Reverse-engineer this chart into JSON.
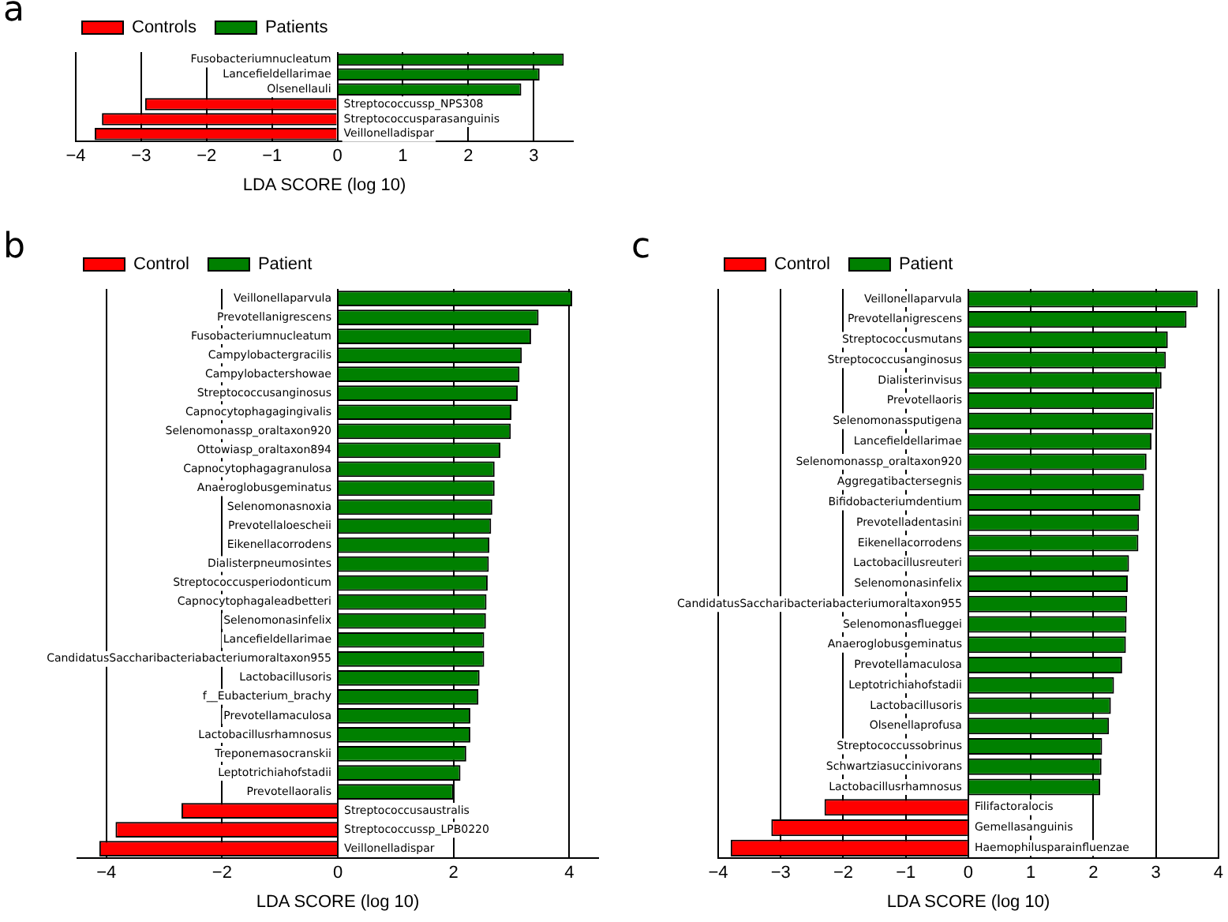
{
  "chart_data": [
    {
      "type": "bar",
      "orientation": "horizontal",
      "title": "a",
      "xlabel": "LDA SCORE (log 10)",
      "legend": "top left",
      "grid": "x",
      "xlim": [
        -4,
        3.6
      ],
      "xticks": [
        -4,
        -3,
        -2,
        -1,
        0,
        1,
        2,
        3
      ],
      "categories": [
        "Fusobacteriumnucleatum",
        "Lancefieldellarimae",
        "Olsenellauli",
        "Streptococcussp_NPS308",
        "Streptococcusparasanguinis",
        "Veillonelladispar"
      ],
      "series": [
        {
          "name": "Controls",
          "color": "#ff0000",
          "values": [
            null,
            null,
            null,
            -2.94,
            -3.6,
            -3.71
          ]
        },
        {
          "name": "Patients",
          "color": "#008000",
          "values": [
            3.46,
            3.09,
            2.81,
            null,
            null,
            null
          ]
        }
      ]
    },
    {
      "type": "bar",
      "orientation": "horizontal",
      "title": "b",
      "xlabel": "LDA SCORE (log 10)",
      "legend": "top left",
      "grid": "x",
      "xlim": [
        -4.5,
        4.5
      ],
      "xticks": [
        -4,
        -2,
        0,
        2,
        4
      ],
      "categories": [
        "Veillonellaparvula",
        "Prevotellanigrescens",
        "Fusobacteriumnucleatum",
        "Campylobactergracilis",
        "Campylobactershowae",
        "Streptococcusanginosus",
        "Capnocytophagagingivalis",
        "Selenomonassp_oraltaxon920",
        "Ottowiasp_oraltaxon894",
        "Capnocytophagagranulosa",
        "Anaeroglobusgeminatus",
        "Selenomonasnoxia",
        "Prevotellaloescheii",
        "Eikenellacorrodens",
        "Dialisterpneumosintes",
        "Streptococcusperiodonticum",
        "Capnocytophagaleadbetteri",
        "Selenomonasinfelix",
        "Lancefieldellarimae",
        "CandidatusSaccharibacteriabacteriumoraltaxon955",
        "Lactobacillusoris",
        "f__Eubacterium_brachy",
        "Prevotellamaculosa",
        "Lactobacillusrhamnosus",
        "Treponemasocranskii",
        "Leptotrichiahofstadii",
        "Prevotellaoralis",
        "Streptococcusaustralis",
        "Streptococcussp_LPB0220",
        "Veillonelladispar"
      ],
      "series": [
        {
          "name": "Control",
          "color": "#ff0000",
          "values": [
            null,
            null,
            null,
            null,
            null,
            null,
            null,
            null,
            null,
            null,
            null,
            null,
            null,
            null,
            null,
            null,
            null,
            null,
            null,
            null,
            null,
            null,
            null,
            null,
            null,
            null,
            null,
            -2.7,
            -3.84,
            -4.12
          ]
        },
        {
          "name": "Patient",
          "color": "#008000",
          "values": [
            4.05,
            3.47,
            3.34,
            3.18,
            3.14,
            3.11,
            3.0,
            2.99,
            2.81,
            2.71,
            2.71,
            2.67,
            2.65,
            2.62,
            2.61,
            2.59,
            2.57,
            2.56,
            2.53,
            2.53,
            2.45,
            2.43,
            2.29,
            2.29,
            2.22,
            2.12,
            2.0,
            null,
            null,
            null
          ]
        }
      ]
    },
    {
      "type": "bar",
      "orientation": "horizontal",
      "title": "c",
      "xlabel": "LDA SCORE (log 10)",
      "legend": "top left",
      "grid": "x",
      "xlim": [
        -4,
        4
      ],
      "xticks": [
        -4,
        -3,
        -2,
        -1,
        0,
        1,
        2,
        3,
        4
      ],
      "categories": [
        "Veillonellaparvula",
        "Prevotellanigrescens",
        "Streptococcusmutans",
        "Streptococcusanginosus",
        "Dialisterinvisus",
        "Prevotellaoris",
        "Selenomonassputigena",
        "Lancefieldellarimae",
        "Selenomonassp_oraltaxon920",
        "Aggregatibactersegnis",
        "Bifidobacteriumdentium",
        "Prevotelladentasini",
        "Eikenellacorrodens",
        "Lactobacillusreuteri",
        "Selenomonasinfelix",
        "CandidatusSaccharibacteriabacteriumoraltaxon955",
        "Selenomonasflueggei",
        "Anaeroglobusgeminatus",
        "Prevotellamaculosa",
        "Leptotrichiahofstadii",
        "Lactobacillusoris",
        "Olsenellaprofusa",
        "Streptococcussobrinus",
        "Schwartziasuccinivorans",
        "Lactobacillusrhamnosus",
        "Filifactoralocis",
        "Gemellasanguinis",
        "Haemophilusparainfluenzae"
      ],
      "series": [
        {
          "name": "Control",
          "color": "#ff0000",
          "values": [
            null,
            null,
            null,
            null,
            null,
            null,
            null,
            null,
            null,
            null,
            null,
            null,
            null,
            null,
            null,
            null,
            null,
            null,
            null,
            null,
            null,
            null,
            null,
            null,
            null,
            -2.3,
            -3.15,
            -3.8
          ]
        },
        {
          "name": "Patient",
          "color": "#008000",
          "values": [
            3.67,
            3.49,
            3.19,
            3.16,
            3.09,
            2.97,
            2.96,
            2.93,
            2.85,
            2.81,
            2.75,
            2.73,
            2.72,
            2.57,
            2.55,
            2.54,
            2.53,
            2.52,
            2.46,
            2.33,
            2.28,
            2.25,
            2.14,
            2.13,
            2.11,
            null,
            null,
            null
          ]
        }
      ]
    }
  ]
}
